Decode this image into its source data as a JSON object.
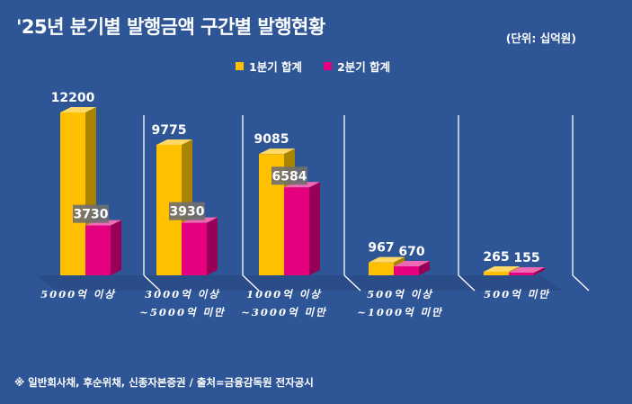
{
  "title": "'25년 분기별 발행금액 구간별 발행현황",
  "unit_label": "(단위: 십억원)",
  "source_note": "※ 일반회사채, 후순위채, 신종자본증권 / 출처=금융감독원 전자공시",
  "colors": {
    "q1": "#ffc000",
    "q2": "#e4007f",
    "background": "#2e5596"
  },
  "chart_data": {
    "type": "bar",
    "categories": [
      "5000억 이상",
      "3000억 이상\n~5000억 미만",
      "1000억 이상\n~3000억 미만",
      "500억 이상\n~1000억 미만",
      "500억 미만"
    ],
    "series": [
      {
        "name": "1분기 합계",
        "values": [
          12200,
          9775,
          9085,
          967,
          265
        ]
      },
      {
        "name": "2분기 합계",
        "values": [
          3730,
          3930,
          6584,
          670,
          155
        ]
      }
    ],
    "data_labels": [
      [
        "12200",
        "9775",
        "9085",
        "967",
        "265"
      ],
      [
        "3730",
        "3930",
        "6584",
        "670",
        "155"
      ]
    ],
    "grid": false,
    "legend_position": "top"
  }
}
